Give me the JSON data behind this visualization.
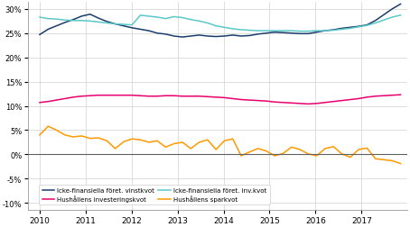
{
  "colors": {
    "vinstkvot": "#1a3d6b",
    "inv_kvot": "#5bc8c8",
    "hush_inv": "#e8006e",
    "hush_spar": "#ff9900"
  },
  "zero_line_color": "#606060",
  "grid_color": "#d0d0d0",
  "background_color": "#ffffff",
  "legend_row1": [
    "Icke-finansiella föret. vinstkvot",
    "Hushållens investeringskvot"
  ],
  "legend_row2": [
    "Icke-finansiella föret. inv.kvot",
    "Hushållens sparkvot"
  ],
  "ylim": [
    -0.115,
    0.315
  ],
  "yticks": [
    -0.1,
    -0.05,
    0.0,
    0.05,
    0.1,
    0.15,
    0.2,
    0.25,
    0.3
  ],
  "xlim": [
    2009.75,
    2018.0
  ],
  "xticks": [
    2010,
    2011,
    2012,
    2013,
    2014,
    2015,
    2016,
    2017
  ],
  "vinstkvot": [
    0.247,
    0.258,
    0.265,
    0.272,
    0.278,
    0.285,
    0.289,
    0.281,
    0.274,
    0.269,
    0.265,
    0.261,
    0.258,
    0.255,
    0.25,
    0.248,
    0.244,
    0.242,
    0.244,
    0.246,
    0.244,
    0.243,
    0.244,
    0.246,
    0.244,
    0.245,
    0.248,
    0.25,
    0.252,
    0.251,
    0.25,
    0.249,
    0.249,
    0.252,
    0.255,
    0.257,
    0.26,
    0.262,
    0.264,
    0.267,
    0.276,
    0.288,
    0.3,
    0.31
  ],
  "inv_kvot": [
    0.283,
    0.28,
    0.279,
    0.277,
    0.276,
    0.276,
    0.275,
    0.273,
    0.271,
    0.269,
    0.268,
    0.267,
    0.287,
    0.285,
    0.283,
    0.28,
    0.284,
    0.282,
    0.278,
    0.275,
    0.271,
    0.265,
    0.262,
    0.259,
    0.257,
    0.256,
    0.255,
    0.255,
    0.255,
    0.255,
    0.255,
    0.254,
    0.254,
    0.255,
    0.255,
    0.256,
    0.258,
    0.26,
    0.263,
    0.266,
    0.271,
    0.277,
    0.283,
    0.287
  ],
  "hush_inv": [
    0.107,
    0.109,
    0.112,
    0.115,
    0.118,
    0.12,
    0.121,
    0.122,
    0.122,
    0.122,
    0.122,
    0.122,
    0.121,
    0.12,
    0.12,
    0.121,
    0.121,
    0.12,
    0.12,
    0.12,
    0.119,
    0.118,
    0.117,
    0.115,
    0.113,
    0.112,
    0.111,
    0.11,
    0.108,
    0.107,
    0.106,
    0.105,
    0.104,
    0.105,
    0.107,
    0.109,
    0.111,
    0.113,
    0.115,
    0.118,
    0.12,
    0.121,
    0.122,
    0.123
  ],
  "hush_spar": [
    0.04,
    0.058,
    0.05,
    0.04,
    0.036,
    0.038,
    0.033,
    0.034,
    0.028,
    0.012,
    0.026,
    0.032,
    0.03,
    0.025,
    0.028,
    0.015,
    0.022,
    0.025,
    0.012,
    0.025,
    0.03,
    0.01,
    0.028,
    0.032,
    -0.003,
    0.005,
    0.012,
    0.007,
    -0.003,
    0.002,
    0.015,
    0.01,
    0.001,
    -0.003,
    0.012,
    0.016,
    0.001,
    -0.006,
    0.01,
    0.013,
    -0.009,
    -0.011,
    -0.013,
    -0.019
  ]
}
